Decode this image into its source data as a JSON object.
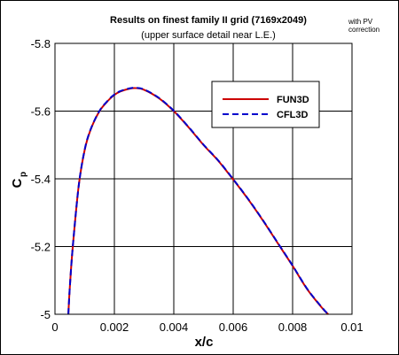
{
  "chart_data": {
    "type": "line",
    "title": "Results on finest family II grid (7169x2049)",
    "subtitle": "(upper surface detail near L.E.)",
    "annotation": "with PV correction",
    "annotation_lines": [
      "with PV",
      "correction"
    ],
    "xlabel": "x/c",
    "ylabel": "C",
    "ylabel_subscript": "p",
    "xlim": [
      0,
      0.01
    ],
    "ylim": [
      -5,
      -5.8
    ],
    "y_inverted": true,
    "grid": true,
    "legend_position": "upper-right",
    "x_ticks": [
      "0",
      "0.002",
      "0.004",
      "0.006",
      "0.008",
      "0.01"
    ],
    "x_tick_values": [
      0,
      0.002,
      0.004,
      0.006,
      0.008,
      0.01
    ],
    "y_ticks": [
      "-5.8",
      "-5.6",
      "-5.4",
      "-5.2",
      "-5"
    ],
    "y_tick_values": [
      -5.8,
      -5.6,
      -5.4,
      -5.2,
      -5.0
    ],
    "series": [
      {
        "name": "FUN3D",
        "color": "#cc0000",
        "dash": "solid",
        "x": [
          0.00045,
          0.0005,
          0.0006,
          0.0008,
          0.001,
          0.0012,
          0.0015,
          0.0018,
          0.002,
          0.0022,
          0.0025,
          0.0027,
          0.003,
          0.0035,
          0.004,
          0.0045,
          0.005,
          0.0055,
          0.006,
          0.0065,
          0.007,
          0.0075,
          0.008,
          0.0085,
          0.009,
          0.0092
        ],
        "y": [
          -5.0,
          -5.08,
          -5.2,
          -5.38,
          -5.485,
          -5.545,
          -5.6,
          -5.632,
          -5.648,
          -5.658,
          -5.666,
          -5.668,
          -5.663,
          -5.638,
          -5.6,
          -5.552,
          -5.5,
          -5.453,
          -5.398,
          -5.34,
          -5.277,
          -5.21,
          -5.143,
          -5.073,
          -5.018,
          -5.0
        ]
      },
      {
        "name": "CFL3D",
        "color": "#0000cc",
        "dash": "dashed",
        "x": [
          0.00045,
          0.0005,
          0.0006,
          0.0008,
          0.001,
          0.0012,
          0.0015,
          0.0018,
          0.002,
          0.0022,
          0.0025,
          0.0027,
          0.003,
          0.0035,
          0.004,
          0.0045,
          0.005,
          0.0055,
          0.006,
          0.0065,
          0.007,
          0.0075,
          0.008,
          0.0085,
          0.009,
          0.0092
        ],
        "y": [
          -5.0,
          -5.08,
          -5.2,
          -5.38,
          -5.486,
          -5.546,
          -5.601,
          -5.633,
          -5.649,
          -5.659,
          -5.667,
          -5.669,
          -5.664,
          -5.639,
          -5.601,
          -5.553,
          -5.501,
          -5.454,
          -5.399,
          -5.341,
          -5.278,
          -5.211,
          -5.144,
          -5.074,
          -5.019,
          -5.0
        ]
      }
    ]
  }
}
